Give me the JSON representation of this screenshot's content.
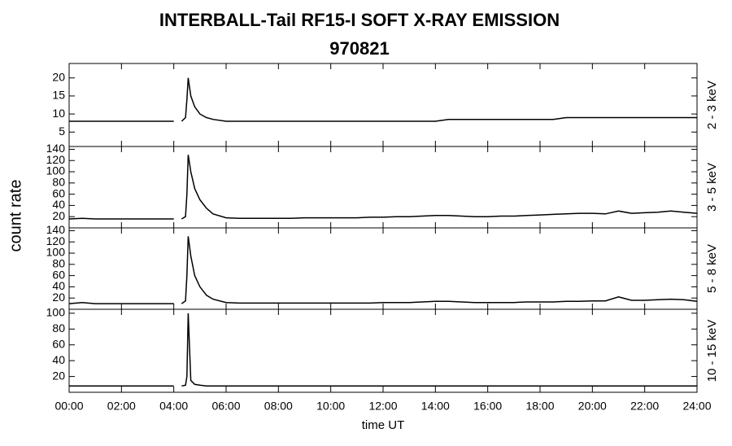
{
  "chart_data": {
    "type": "line",
    "title": "INTERBALL-Tail RF15-I SOFT X-RAY EMISSION",
    "subtitle": "970821",
    "ylabel": "count rate",
    "xlabel": "time UT",
    "xlim": [
      0,
      24
    ],
    "xticks": [
      {
        "value": 0,
        "label": "00:00"
      },
      {
        "value": 2,
        "label": "02:00"
      },
      {
        "value": 4,
        "label": "04:00"
      },
      {
        "value": 6,
        "label": "06:00"
      },
      {
        "value": 8,
        "label": "08:00"
      },
      {
        "value": 10,
        "label": "10:00"
      },
      {
        "value": 12,
        "label": "12:00"
      },
      {
        "value": 14,
        "label": "14:00"
      },
      {
        "value": 16,
        "label": "16:00"
      },
      {
        "value": 18,
        "label": "18:00"
      },
      {
        "value": 20,
        "label": "20:00"
      },
      {
        "value": 22,
        "label": "22:00"
      },
      {
        "value": 24,
        "label": "24:00"
      }
    ],
    "x": [
      0,
      0.5,
      1,
      1.5,
      2,
      2.5,
      3,
      3.5,
      4,
      4.1,
      4.3,
      4.45,
      4.5,
      4.55,
      4.65,
      4.8,
      5,
      5.25,
      5.5,
      6,
      6.5,
      7,
      7.5,
      8,
      8.5,
      9,
      9.5,
      10,
      10.5,
      11,
      11.5,
      12,
      12.5,
      13,
      13.5,
      14,
      14.5,
      15,
      15.5,
      16,
      16.5,
      17,
      17.5,
      18,
      18.5,
      19,
      19.5,
      20,
      20.5,
      21,
      21.5,
      22,
      22.5,
      23,
      23.5,
      24
    ],
    "series": [
      {
        "name": "2 - 3 keV",
        "color": "#000000",
        "ylim": [
          1,
          24
        ],
        "yticks": [
          5,
          10,
          15,
          20
        ],
        "values": [
          8,
          8,
          8,
          8,
          8,
          8,
          8,
          8,
          8,
          null,
          8,
          9,
          14,
          20,
          15,
          12,
          10,
          9,
          8.5,
          8,
          8,
          8,
          8,
          8,
          8,
          8,
          8,
          8,
          8,
          8,
          8,
          8,
          8,
          8,
          8,
          8,
          8.5,
          8.5,
          8.5,
          8.5,
          8.5,
          8.5,
          8.5,
          8.5,
          8.5,
          9,
          9,
          9,
          9,
          9,
          9,
          9,
          9,
          9,
          9,
          9
        ]
      },
      {
        "name": "3 - 5 keV",
        "color": "#000000",
        "ylim": [
          0,
          145
        ],
        "yticks": [
          20,
          40,
          60,
          80,
          100,
          120,
          140
        ],
        "values": [
          16,
          17,
          16,
          16,
          16,
          16,
          16,
          16,
          16,
          null,
          16,
          20,
          60,
          130,
          100,
          70,
          50,
          35,
          25,
          18,
          17,
          17,
          17,
          17,
          17,
          18,
          18,
          18,
          18,
          18,
          19,
          19,
          20,
          20,
          21,
          22,
          22,
          21,
          20,
          20,
          21,
          21,
          22,
          23,
          24,
          25,
          26,
          26,
          25,
          30,
          26,
          27,
          28,
          30,
          28,
          26
        ]
      },
      {
        "name": "5 - 8 keV",
        "color": "#000000",
        "ylim": [
          0,
          145
        ],
        "yticks": [
          20,
          40,
          60,
          80,
          100,
          120,
          140
        ],
        "values": [
          10,
          12,
          10,
          10,
          10,
          10,
          10,
          10,
          10,
          null,
          10,
          15,
          60,
          130,
          95,
          60,
          40,
          25,
          18,
          12,
          11,
          11,
          11,
          11,
          11,
          11,
          11,
          11,
          11,
          11,
          11,
          12,
          12,
          12,
          13,
          14,
          14,
          13,
          12,
          12,
          12,
          12,
          13,
          13,
          13,
          14,
          14,
          15,
          15,
          22,
          16,
          16,
          17,
          18,
          17,
          14
        ]
      },
      {
        "name": "10 - 15 keV",
        "color": "#000000",
        "ylim": [
          0,
          105
        ],
        "yticks": [
          20,
          40,
          60,
          80,
          100
        ],
        "values": [
          8,
          8,
          8,
          8,
          8,
          8,
          8,
          8,
          8,
          null,
          8,
          9,
          20,
          100,
          15,
          10,
          9,
          8,
          8,
          8,
          8,
          8,
          8,
          8,
          8,
          8,
          8,
          8,
          8,
          8,
          8,
          8,
          8,
          8,
          8,
          8,
          8,
          8,
          8,
          8,
          8,
          8,
          8,
          8,
          8,
          8,
          8,
          8,
          8,
          8,
          8,
          8,
          8,
          8,
          8,
          8
        ]
      }
    ]
  }
}
